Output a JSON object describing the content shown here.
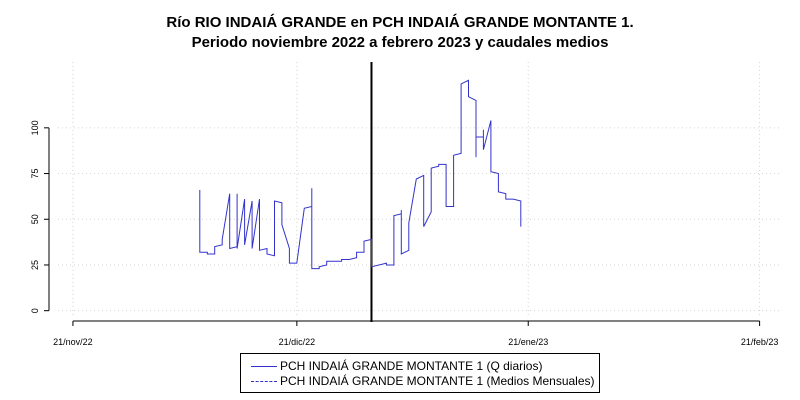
{
  "chart_data": {
    "type": "line",
    "title": [
      "Río RIO INDAIÁ GRANDE en PCH INDAIÁ GRANDE MONTANTE 1.",
      "Periodo noviembre 2022 a febrero 2023 y caudales medios"
    ],
    "xlabel": "",
    "ylabel": "",
    "x_axis": {
      "type": "date",
      "range": [
        "2022-11-19",
        "2023-02-24"
      ],
      "ticks": [
        "2022-11-21",
        "2022-12-21",
        "2023-01-21",
        "2023-02-21"
      ],
      "tick_labels": [
        "21/nov/22",
        "21/dic/22",
        "21/ene/23",
        "21/feb/23"
      ]
    },
    "y_axis": {
      "range": [
        -4,
        136
      ],
      "ticks": [
        0,
        25,
        50,
        75,
        100
      ],
      "tick_labels": [
        "0",
        "25",
        "50",
        "75",
        "100"
      ]
    },
    "grid": true,
    "vertical_marker": {
      "x": "2022-12-31",
      "color": "#000000"
    },
    "legend": {
      "position": "bottom-center"
    },
    "series": [
      {
        "name": "PCH INDAIÁ GRANDE MONTANTE 1 (Q diarios)",
        "color": "#3333cc",
        "style": "solid",
        "points": [
          [
            "2022-12-08",
            66
          ],
          [
            "2022-12-08",
            32
          ],
          [
            "2022-12-09",
            32
          ],
          [
            "2022-12-09",
            31
          ],
          [
            "2022-12-10",
            31
          ],
          [
            "2022-12-10",
            35
          ],
          [
            "2022-12-11",
            36
          ],
          [
            "2022-12-11",
            39
          ],
          [
            "2022-12-12",
            64
          ],
          [
            "2022-12-12",
            34
          ],
          [
            "2022-12-13",
            35
          ],
          [
            "2022-12-13",
            64
          ],
          [
            "2022-12-13",
            34
          ],
          [
            "2022-12-14",
            61
          ],
          [
            "2022-12-14",
            36
          ],
          [
            "2022-12-15",
            60
          ],
          [
            "2022-12-15",
            34
          ],
          [
            "2022-12-16",
            61
          ],
          [
            "2022-12-16",
            33
          ],
          [
            "2022-12-17",
            34
          ],
          [
            "2022-12-17",
            31
          ],
          [
            "2022-12-18",
            30
          ],
          [
            "2022-12-18",
            60
          ],
          [
            "2022-12-19",
            59
          ],
          [
            "2022-12-19",
            47
          ],
          [
            "2022-12-20",
            34
          ],
          [
            "2022-12-20",
            26
          ],
          [
            "2022-12-21",
            26
          ],
          [
            "2022-12-22",
            56
          ],
          [
            "2022-12-23",
            57
          ],
          [
            "2022-12-23",
            67
          ],
          [
            "2022-12-23",
            23
          ],
          [
            "2022-12-24",
            23
          ],
          [
            "2022-12-24",
            24
          ],
          [
            "2022-12-25",
            25
          ],
          [
            "2022-12-25",
            27
          ],
          [
            "2022-12-26",
            27
          ],
          [
            "2022-12-27",
            27
          ],
          [
            "2022-12-27",
            28
          ],
          [
            "2022-12-28",
            28
          ],
          [
            "2022-12-29",
            29
          ],
          [
            "2022-12-29",
            32
          ],
          [
            "2022-12-30",
            32
          ],
          [
            "2022-12-30",
            38
          ],
          [
            "2022-12-31",
            39
          ],
          [
            "2022-12-31",
            24
          ],
          [
            "2023-01-01",
            25
          ],
          [
            "2023-01-02",
            26
          ],
          [
            "2023-01-02",
            25
          ],
          [
            "2023-01-03",
            25
          ],
          [
            "2023-01-03",
            52
          ],
          [
            "2023-01-04",
            53
          ],
          [
            "2023-01-04",
            55
          ],
          [
            "2023-01-04",
            31
          ],
          [
            "2023-01-05",
            33
          ],
          [
            "2023-01-05",
            48
          ],
          [
            "2023-01-06",
            72
          ],
          [
            "2023-01-07",
            74
          ],
          [
            "2023-01-07",
            46
          ],
          [
            "2023-01-08",
            54
          ],
          [
            "2023-01-08",
            78
          ],
          [
            "2023-01-09",
            79
          ],
          [
            "2023-01-09",
            80
          ],
          [
            "2023-01-10",
            80
          ],
          [
            "2023-01-10",
            57
          ],
          [
            "2023-01-11",
            57
          ],
          [
            "2023-01-11",
            85
          ],
          [
            "2023-01-12",
            86
          ],
          [
            "2023-01-12",
            124
          ],
          [
            "2023-01-13",
            126
          ],
          [
            "2023-01-13",
            117
          ],
          [
            "2023-01-14",
            115
          ],
          [
            "2023-01-14",
            84
          ],
          [
            "2023-01-14",
            95
          ],
          [
            "2023-01-15",
            95
          ],
          [
            "2023-01-15",
            99
          ],
          [
            "2023-01-15",
            88
          ],
          [
            "2023-01-16",
            104
          ],
          [
            "2023-01-16",
            76
          ],
          [
            "2023-01-17",
            75
          ],
          [
            "2023-01-17",
            65
          ],
          [
            "2023-01-18",
            64
          ],
          [
            "2023-01-18",
            61
          ],
          [
            "2023-01-19",
            61
          ],
          [
            "2023-01-20",
            60
          ],
          [
            "2023-01-20",
            46
          ]
        ]
      },
      {
        "name": "PCH INDAIÁ GRANDE MONTANTE 1 (Medios Mensuales)",
        "color": "#3333cc",
        "style": "dashed",
        "points": []
      }
    ]
  }
}
